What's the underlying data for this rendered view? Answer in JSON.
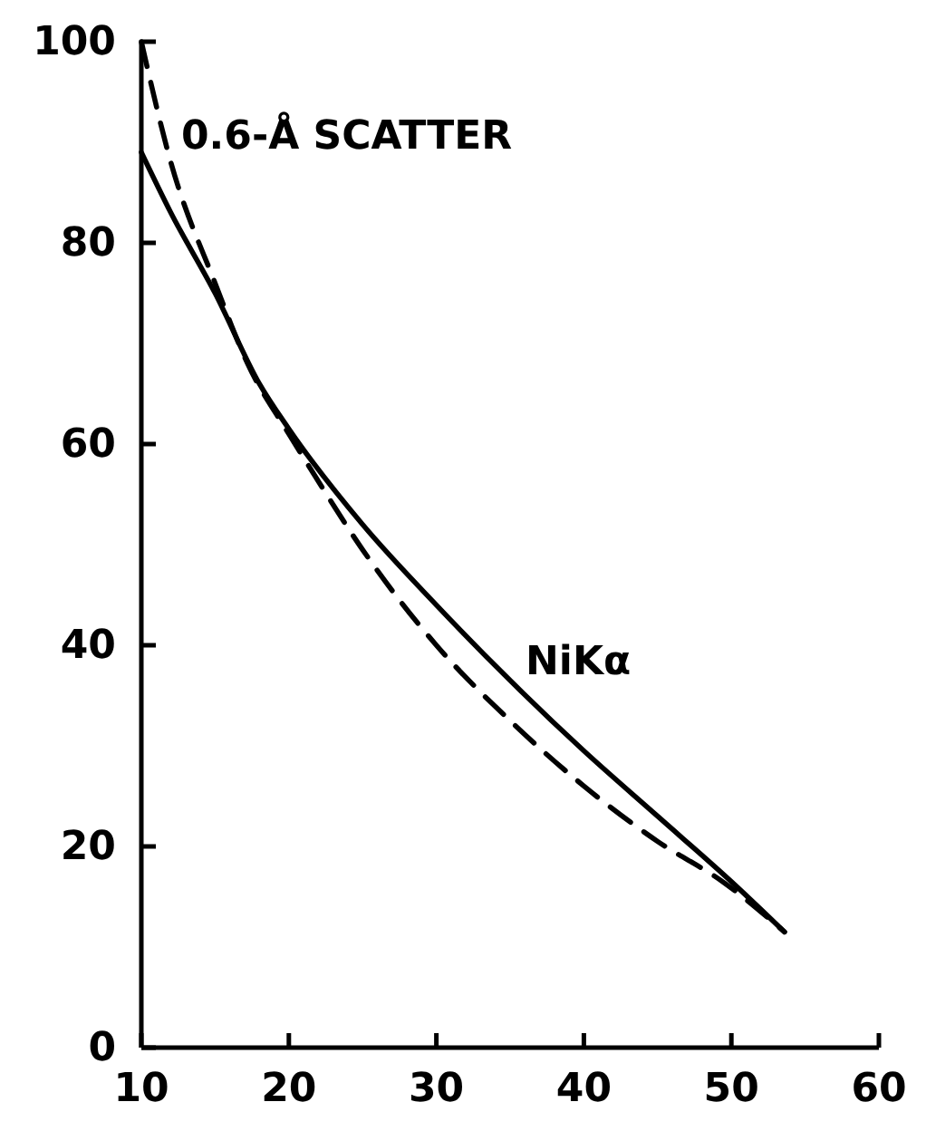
{
  "chart_data": {
    "type": "line",
    "xlim": [
      10,
      60
    ],
    "ylim": [
      0,
      100
    ],
    "xticks": [
      10,
      20,
      30,
      40,
      50,
      60
    ],
    "yticks": [
      0,
      20,
      40,
      60,
      80,
      100
    ],
    "grid": false,
    "legend": false,
    "marker": "none",
    "series": [
      {
        "name": "0.6-Å SCATTER",
        "color": "#000000",
        "line_style": "dashed",
        "x": [
          10,
          12,
          15,
          17.2,
          20,
          21.7,
          25,
          30,
          35,
          40,
          45,
          49.5,
          53.6
        ],
        "values": [
          100,
          88,
          76,
          68,
          61,
          57,
          49.5,
          40,
          32.5,
          26,
          20.5,
          16.4,
          11.5
        ]
      },
      {
        "name": "NiKα",
        "color": "#000000",
        "line_style": "solid",
        "x": [
          10,
          12,
          15,
          18,
          20,
          25,
          30,
          35,
          40,
          45,
          50,
          53.6
        ],
        "values": [
          89,
          83,
          75,
          66,
          61.5,
          52,
          44,
          36.5,
          29.5,
          23,
          16.5,
          11.5
        ]
      }
    ]
  }
}
